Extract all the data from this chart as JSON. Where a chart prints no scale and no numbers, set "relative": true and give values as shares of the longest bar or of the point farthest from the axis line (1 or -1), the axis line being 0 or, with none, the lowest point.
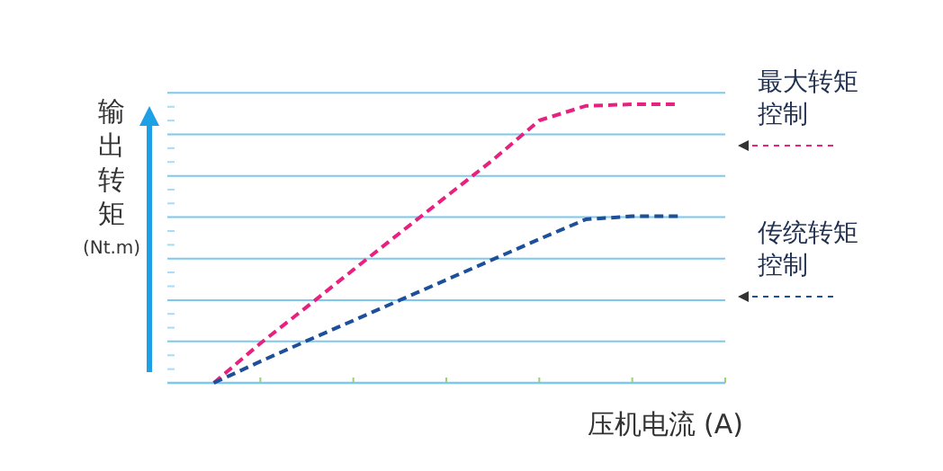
{
  "chart_data": {
    "type": "line",
    "relative": true,
    "xlabel": "压机电流 (A)",
    "ylabel": "输出转矩(Nt.m)",
    "categories": [
      null,
      null,
      null,
      null,
      null,
      null,
      null,
      null,
      null,
      null,
      null,
      null,
      null
    ],
    "line_style": "dashed",
    "legend": "right",
    "ref_lines": [
      {
        "axis": "y",
        "value": 0.149,
        "color": "#7cc8ee"
      },
      {
        "axis": "y",
        "value": 0.297,
        "color": "#7cc8ee"
      },
      {
        "axis": "y",
        "value": 0.446,
        "color": "#7cc8ee"
      },
      {
        "axis": "y",
        "value": 0.595,
        "color": "#7cc8ee"
      },
      {
        "axis": "y",
        "value": 0.743,
        "color": "#7cc8ee"
      },
      {
        "axis": "y",
        "value": 0.892,
        "color": "#7cc8ee"
      },
      {
        "axis": "y",
        "value": 1.041,
        "color": "#7cc8ee"
      }
    ],
    "series": [
      {
        "name": "最大转矩控制",
        "color": "#e8207f",
        "values": [
          null,
          0,
          0.142,
          0.273,
          0.406,
          0.538,
          0.669,
          0.8,
          0.942,
          0.994,
          1,
          1,
          null
        ]
      },
      {
        "name": "传统转矩控制",
        "color": "#1d4f9a",
        "values": [
          null,
          0,
          0.077,
          0.151,
          0.224,
          0.297,
          0.37,
          0.443,
          0.516,
          0.587,
          0.598,
          0.598,
          null
        ]
      }
    ]
  }
}
